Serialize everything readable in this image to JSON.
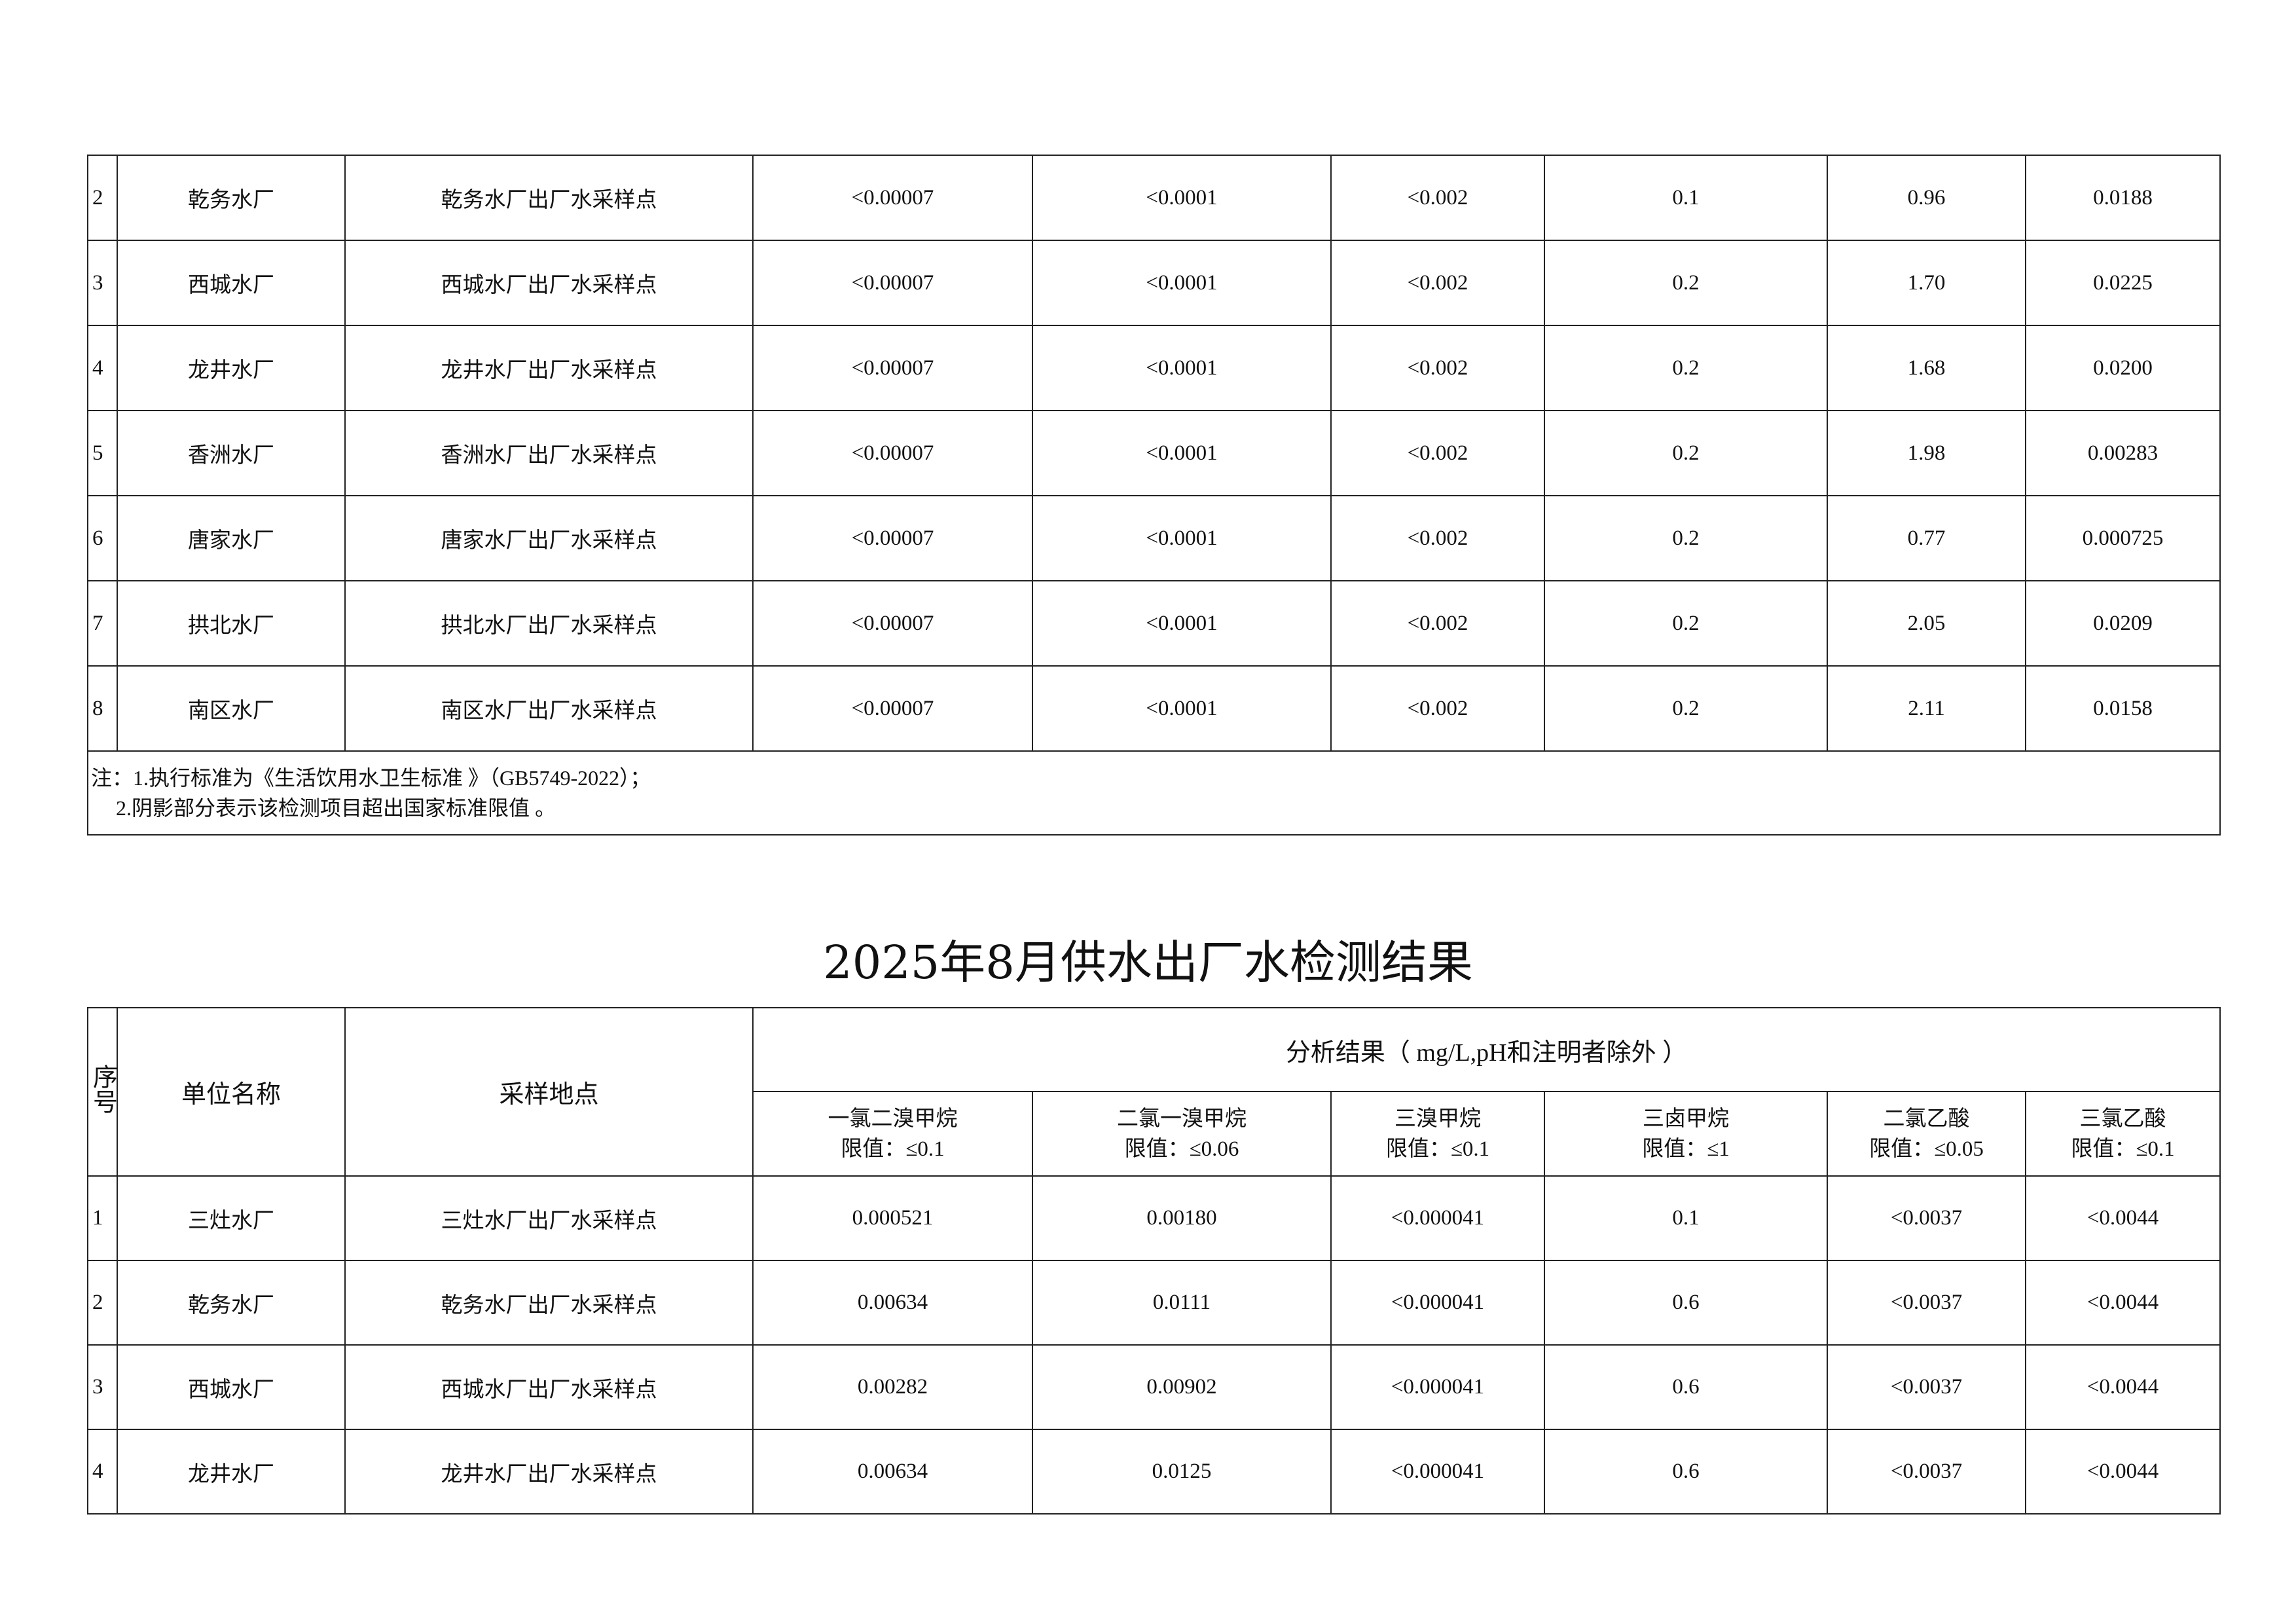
{
  "table1": {
    "rows": [
      {
        "seq": "2",
        "unit": "乾务水厂",
        "site": "乾务水厂出厂水采样点",
        "v": [
          "<0.00007",
          "<0.0001",
          "<0.002",
          "0.1",
          "0.96",
          "0.0188"
        ]
      },
      {
        "seq": "3",
        "unit": "西城水厂",
        "site": "西城水厂出厂水采样点",
        "v": [
          "<0.00007",
          "<0.0001",
          "<0.002",
          "0.2",
          "1.70",
          "0.0225"
        ]
      },
      {
        "seq": "4",
        "unit": "龙井水厂",
        "site": "龙井水厂出厂水采样点",
        "v": [
          "<0.00007",
          "<0.0001",
          "<0.002",
          "0.2",
          "1.68",
          "0.0200"
        ]
      },
      {
        "seq": "5",
        "unit": "香洲水厂",
        "site": "香洲水厂出厂水采样点",
        "v": [
          "<0.00007",
          "<0.0001",
          "<0.002",
          "0.2",
          "1.98",
          "0.00283"
        ]
      },
      {
        "seq": "6",
        "unit": "唐家水厂",
        "site": "唐家水厂出厂水采样点",
        "v": [
          "<0.00007",
          "<0.0001",
          "<0.002",
          "0.2",
          "0.77",
          "0.000725"
        ]
      },
      {
        "seq": "7",
        "unit": "拱北水厂",
        "site": "拱北水厂出厂水采样点",
        "v": [
          "<0.00007",
          "<0.0001",
          "<0.002",
          "0.2",
          "2.05",
          "0.0209"
        ]
      },
      {
        "seq": "8",
        "unit": "南区水厂",
        "site": "南区水厂出厂水采样点",
        "v": [
          "<0.00007",
          "<0.0001",
          "<0.002",
          "0.2",
          "2.11",
          "0.0158"
        ]
      }
    ],
    "note_line1": "注：1.执行标准为《生活饮用水卫生标准 》（GB5749-2022）；",
    "note_line2": "2.阴影部分表示该检测项目超出国家标准限值 。"
  },
  "title": "2025年8月供水出厂水检测结果",
  "table2": {
    "header": {
      "seq": "序号",
      "unit": "单位名称",
      "site": "采样地点",
      "analysis": "分析结果（ mg/L,pH和注明者除外 ）",
      "columns": [
        {
          "name": "一氯二溴甲烷",
          "limit": "限值：≤0.1"
        },
        {
          "name": "二氯一溴甲烷",
          "limit": "限值：≤0.06"
        },
        {
          "name": "三溴甲烷",
          "limit": "限值：≤0.1"
        },
        {
          "name": "三卤甲烷",
          "limit": "限值：≤1"
        },
        {
          "name": "二氯乙酸",
          "limit": "限值：≤0.05"
        },
        {
          "name": "三氯乙酸",
          "limit": "限值：≤0.1"
        }
      ]
    },
    "rows": [
      {
        "seq": "1",
        "unit": "三灶水厂",
        "site": "三灶水厂出厂水采样点",
        "v": [
          "0.000521",
          "0.00180",
          "<0.000041",
          "0.1",
          "<0.0037",
          "<0.0044"
        ]
      },
      {
        "seq": "2",
        "unit": "乾务水厂",
        "site": "乾务水厂出厂水采样点",
        "v": [
          "0.00634",
          "0.0111",
          "<0.000041",
          "0.6",
          "<0.0037",
          "<0.0044"
        ]
      },
      {
        "seq": "3",
        "unit": "西城水厂",
        "site": "西城水厂出厂水采样点",
        "v": [
          "0.00282",
          "0.00902",
          "<0.000041",
          "0.6",
          "<0.0037",
          "<0.0044"
        ]
      },
      {
        "seq": "4",
        "unit": "龙井水厂",
        "site": "龙井水厂出厂水采样点",
        "v": [
          "0.00634",
          "0.0125",
          "<0.000041",
          "0.6",
          "<0.0037",
          "<0.0044"
        ]
      }
    ]
  }
}
